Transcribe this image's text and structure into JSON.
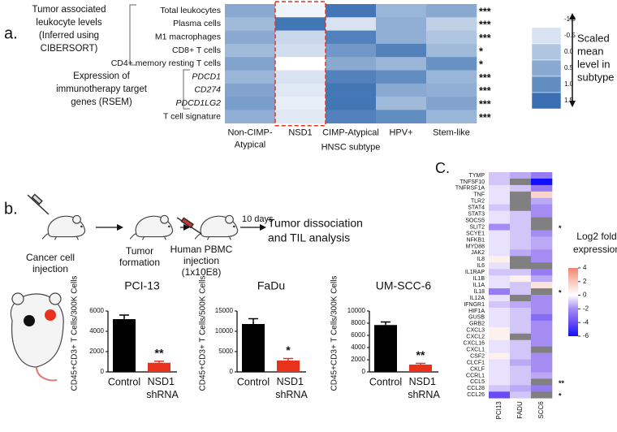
{
  "schematic": {
    "panel_label": "b.",
    "steps": [
      [
        "Cancer cell",
        "injection"
      ],
      [
        "Tumor",
        "formation"
      ],
      [
        "Human PBMC",
        "injection",
        "(1x10E8)"
      ]
    ],
    "interval": "10 days",
    "outcome": [
      "Tumor dissociation",
      "and TIL analysis"
    ]
  },
  "chart_data": [
    {
      "type": "heatmap",
      "panel_label": "a.",
      "rows": [
        "Total leukocytes",
        "Plasma cells",
        "M1 macrophages",
        "CD8+ T cells",
        "CD4+ memory resting T cells",
        "PDCD1",
        "CD274",
        "PDCD1LG2",
        "T cell signature"
      ],
      "columns": [
        "Non-CIMP-Atypical",
        "NSD1",
        "CIMP-Atypical",
        "HPV+",
        "Stem-like"
      ],
      "values": [
        [
          0.5,
          -0.8,
          1.4,
          0.3,
          0.5
        ],
        [
          0.2,
          1.4,
          -0.5,
          0.4,
          -0.2
        ],
        [
          0.5,
          -0.3,
          1.2,
          0.4,
          0.0
        ],
        [
          0.2,
          -0.4,
          0.8,
          1.2,
          0.2
        ],
        [
          0.6,
          -1.0,
          0.5,
          0.3,
          0.9
        ],
        [
          0.3,
          -0.5,
          1.2,
          1.0,
          0.3
        ],
        [
          0.6,
          -0.6,
          1.4,
          0.5,
          0.4
        ],
        [
          0.7,
          -0.7,
          1.4,
          0.2,
          0.6
        ],
        [
          0.4,
          -0.6,
          1.2,
          1.0,
          0.3
        ]
      ],
      "significance": [
        "***",
        "***",
        "***",
        "*",
        "*",
        "***",
        "***",
        "***",
        "***"
      ],
      "group_labels": [
        [
          "Tumor associated",
          "leukocyte levels",
          "(Inferred using",
          "CIBERSORT)"
        ],
        [
          "Expression of",
          "immunotherapy target",
          "genes (RSEM)"
        ]
      ],
      "xlabel": "HNSC subtype",
      "colorbar_title": [
        "Scaled",
        "mean",
        "level in",
        "subtype"
      ],
      "clim": [
        -1,
        1.5
      ],
      "colors": [
        "#ffffff",
        "#3a70b2"
      ],
      "colorbar_ticks": [
        {
          "value": -1,
          "label": "-1.0"
        },
        -0.5,
        {
          "value": 0,
          "label": "0.0"
        },
        0.5,
        {
          "value": 1,
          "label": "1.0"
        },
        1.5
      ]
    },
    {
      "type": "bar",
      "title": "PCI-13",
      "ylabel": "CD45+CD3+ T Cells/300K Cells",
      "categories": [
        "Control",
        "NSD1 shRNA"
      ],
      "values": [
        5200,
        900
      ],
      "errors": [
        400,
        150
      ],
      "colors": [
        "#000000",
        "#e8321e"
      ],
      "significance": [
        null,
        "**"
      ],
      "ylim": [
        0,
        6000
      ],
      "yticks": [
        0,
        2000,
        4000,
        6000
      ]
    },
    {
      "type": "bar",
      "title": "FaDu",
      "ylabel": "CD45+CD3+ T Cells/500K Cells",
      "categories": [
        "Control",
        "NSD1 shRNA"
      ],
      "values": [
        11800,
        2800
      ],
      "errors": [
        1300,
        500
      ],
      "colors": [
        "#000000",
        "#e8321e"
      ],
      "significance": [
        null,
        "*"
      ],
      "ylim": [
        0,
        15000
      ],
      "yticks": [
        0,
        5000,
        10000,
        15000
      ]
    },
    {
      "type": "bar",
      "title": "UM-SCC-6",
      "ylabel": "CD45+CD3+ T Cells/300K Cells",
      "categories": [
        "Control",
        "NSD1 shRNA"
      ],
      "values": [
        7700,
        1200
      ],
      "errors": [
        500,
        200
      ],
      "colors": [
        "#000000",
        "#e8321e"
      ],
      "significance": [
        null,
        "**"
      ],
      "ylim": [
        0,
        10000
      ],
      "yticks": [
        0,
        2000,
        4000,
        6000,
        8000,
        10000
      ]
    },
    {
      "type": "heatmap",
      "panel_label": "C.",
      "rows": [
        "TYMP",
        "TNFSF10",
        "TNFRSF1A",
        "TNF",
        "TLR2",
        "STAT4",
        "STAT3",
        "SOCS5",
        "SLIT2",
        "SCYE1",
        "NFKB1",
        "MYD88",
        "JAK2",
        "IL8",
        "IL6",
        "IL1RAP",
        "IL1B",
        "IL1A",
        "IL18",
        "IL12A",
        "IFNGR1",
        "HIF1A",
        "GUSB",
        "GRB2",
        "CXCL3",
        "CXCL2",
        "CXCL16",
        "CXCL1",
        "CSF2",
        "CLCF1",
        "CKLF",
        "CCRL1",
        "CCL5",
        "CCL28",
        "CCL26"
      ],
      "columns": [
        "PCI13",
        "FADU",
        "SCC6"
      ],
      "values": [
        [
          -1,
          -1.5,
          -2.5
        ],
        [
          -1,
          null,
          -6
        ],
        [
          -0.5,
          -1,
          -2.5
        ],
        [
          -0.5,
          null,
          1.5
        ],
        [
          -0.5,
          null,
          -1.5
        ],
        [
          -1,
          null,
          -2
        ],
        [
          -0.5,
          -1,
          -2
        ],
        [
          -0.5,
          -1,
          null
        ],
        [
          -2,
          -1,
          null
        ],
        [
          -0.5,
          -1,
          -2
        ],
        [
          -0.5,
          -1,
          -1.5
        ],
        [
          -0.5,
          -1,
          -1.5
        ],
        [
          -0.5,
          -1.5,
          -2
        ],
        [
          0.5,
          null,
          -2
        ],
        [
          -0.5,
          null,
          null
        ],
        [
          -1,
          -1,
          -2.5
        ],
        [
          -0.5,
          0.5,
          -1.5
        ],
        [
          -0.5,
          -1,
          1
        ],
        [
          -2.5,
          -1,
          null
        ],
        [
          -0.5,
          null,
          -2
        ],
        [
          -1,
          -1.5,
          -2
        ],
        [
          -0.5,
          -1,
          -2
        ],
        [
          -0.5,
          -1,
          -3
        ],
        [
          -0.5,
          -1,
          -2
        ],
        [
          0.5,
          -1,
          -2
        ],
        [
          0.5,
          null,
          -2
        ],
        [
          -0.5,
          -1,
          -2
        ],
        [
          -0.5,
          -1,
          null
        ],
        [
          0.5,
          -1,
          -2
        ],
        [
          -0.5,
          -1.5,
          -2
        ],
        [
          -0.5,
          -1,
          -2
        ],
        [
          -0.5,
          -1,
          -1.5
        ],
        [
          -0.5,
          -1,
          null
        ],
        [
          -1,
          -1.5,
          -2.5
        ],
        [
          -4,
          -1,
          null
        ]
      ],
      "significance": [
        null,
        null,
        null,
        null,
        null,
        null,
        null,
        null,
        "*",
        null,
        null,
        null,
        null,
        null,
        null,
        null,
        null,
        null,
        "*",
        null,
        null,
        null,
        null,
        null,
        null,
        null,
        null,
        null,
        null,
        null,
        null,
        null,
        "**",
        null,
        "*"
      ],
      "colorbar_title": [
        "Log2 fold",
        "expression"
      ],
      "clim": [
        -6,
        4
      ],
      "colors": [
        "#1010ff",
        "#6a4cf5",
        "#a48cf2",
        "#ffffff",
        "#f8c8bc",
        "#f28470"
      ],
      "missing_color": "#808080",
      "colorbar_ticks": [
        4,
        2,
        0,
        -2,
        -4,
        -6
      ]
    }
  ]
}
